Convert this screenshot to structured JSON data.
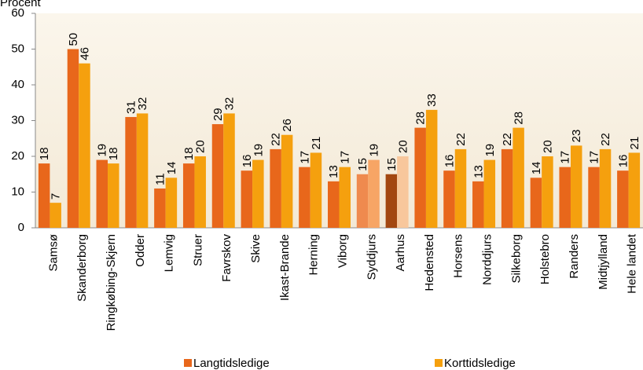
{
  "chart_data": {
    "type": "bar",
    "ylabel": "Procent",
    "categories": [
      "Samsø",
      "Skanderborg",
      "Ringkøbing-Skjern",
      "Odder",
      "Lemvig",
      "Struer",
      "Favrskov",
      "Skive",
      "Ikast-Brande",
      "Herning",
      "Viborg",
      "Syddjurs",
      "Aarhus",
      "Hedensted",
      "Horsens",
      "Norddjurs",
      "Silkeborg",
      "Holstebro",
      "Randers",
      "Midtjylland",
      "Hele landet"
    ],
    "series": [
      {
        "name": "Langtidsledige",
        "color": "#e8671b",
        "values": [
          18,
          50,
          19,
          31,
          11,
          18,
          29,
          16,
          22,
          17,
          13,
          15,
          15,
          28,
          16,
          13,
          22,
          14,
          17,
          17,
          16
        ],
        "colors": [
          "#e8671b",
          "#e8671b",
          "#e8671b",
          "#e8671b",
          "#e8671b",
          "#e8671b",
          "#e8671b",
          "#e8671b",
          "#e8671b",
          "#e8671b",
          "#e8671b",
          "#ef8a4e",
          "#a34710",
          "#e8671b",
          "#e8671b",
          "#e8671b",
          "#e8671b",
          "#e8671b",
          "#e8671b",
          "#e8671b",
          "#e8671b"
        ]
      },
      {
        "name": "Korttidsledige",
        "color": "#f5a00e",
        "values": [
          7,
          46,
          18,
          32,
          14,
          20,
          32,
          19,
          26,
          21,
          17,
          19,
          20,
          33,
          22,
          19,
          28,
          20,
          23,
          22,
          21
        ],
        "colors": [
          "#f5a00e",
          "#f5a00e",
          "#f5a00e",
          "#f5a00e",
          "#f5a00e",
          "#f5a00e",
          "#f5a00e",
          "#f5a00e",
          "#f5a00e",
          "#f5a00e",
          "#f5a00e",
          "#f7a565",
          "#f8c79c",
          "#f5a00e",
          "#f5a00e",
          "#f5a00e",
          "#f5a00e",
          "#f5a00e",
          "#f5a00e",
          "#f5a00e",
          "#f5a00e"
        ]
      }
    ],
    "ylim": [
      0,
      60
    ],
    "yticks": [
      0,
      10,
      20,
      30,
      40,
      50,
      60
    ],
    "grid": false,
    "legend": "bottom"
  }
}
